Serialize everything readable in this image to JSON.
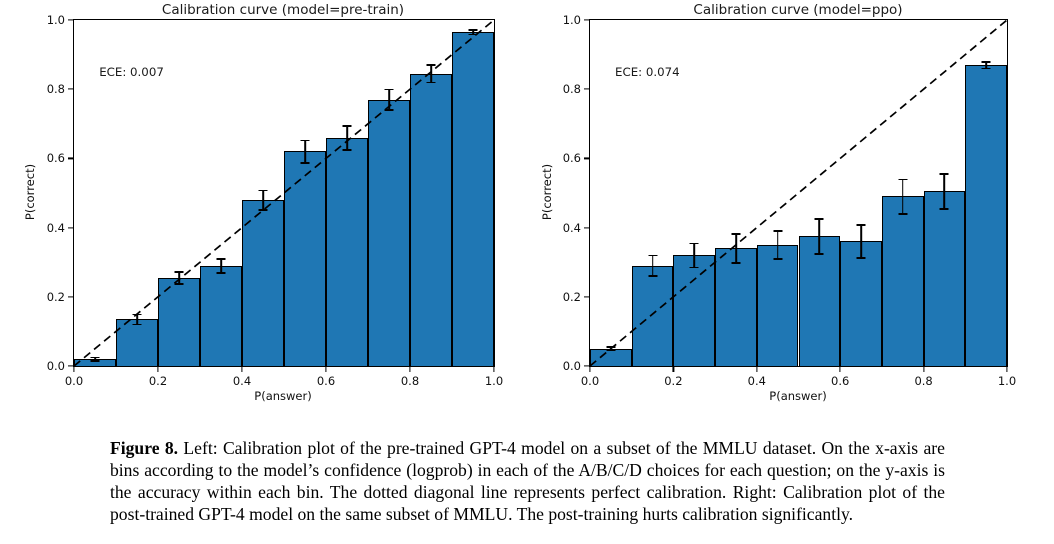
{
  "page": {
    "background": "#ffffff"
  },
  "colors": {
    "bar_fill": "#1f77b4",
    "bar_edge": "#000000",
    "error_bar": "#000000",
    "diagonal": "#000000",
    "axis": "#000000",
    "text": "#111111"
  },
  "figure": {
    "caption_label": "Figure 8.",
    "caption_text": " Left: Calibration plot of the pre-trained GPT-4 model on a subset of the MMLU dataset. On the x-axis are bins according to the model’s confidence (logprob) in each of the A/B/C/D choices for each question; on the y-axis is the accuracy within each bin. The dotted diagonal line represents perfect calibration. Right: Calibration plot of the post-trained GPT-4 model on the same subset of MMLU. The post-training hurts calibration significantly."
  },
  "chart_data": [
    {
      "type": "bar",
      "title": "Calibration curve (model=pre-train)",
      "annotation": "ECE: 0.007",
      "xlabel": "P(answer)",
      "ylabel": "P(correct)",
      "xlim": [
        0.0,
        1.0
      ],
      "ylim": [
        0.0,
        1.0
      ],
      "xticks": [
        0.0,
        0.2,
        0.4,
        0.6,
        0.8,
        1.0
      ],
      "yticks": [
        0.0,
        0.2,
        0.4,
        0.6,
        0.8,
        1.0
      ],
      "grid": false,
      "legend": "none",
      "diagonal": true,
      "bin_width": 0.1,
      "bin_centers": [
        0.05,
        0.15,
        0.25,
        0.35,
        0.45,
        0.55,
        0.65,
        0.75,
        0.85,
        0.95
      ],
      "values": [
        0.02,
        0.135,
        0.255,
        0.29,
        0.48,
        0.62,
        0.66,
        0.77,
        0.845,
        0.965
      ],
      "errors": [
        0.005,
        0.015,
        0.018,
        0.02,
        0.028,
        0.032,
        0.035,
        0.03,
        0.025,
        0.006
      ]
    },
    {
      "type": "bar",
      "title": "Calibration curve (model=ppo)",
      "annotation": "ECE: 0.074",
      "xlabel": "P(answer)",
      "ylabel": "P(correct)",
      "xlim": [
        0.0,
        1.0
      ],
      "ylim": [
        0.0,
        1.0
      ],
      "xticks": [
        0.0,
        0.2,
        0.4,
        0.6,
        0.8,
        1.0
      ],
      "yticks": [
        0.0,
        0.2,
        0.4,
        0.6,
        0.8,
        1.0
      ],
      "grid": false,
      "legend": "none",
      "diagonal": true,
      "bin_width": 0.1,
      "bin_centers": [
        0.05,
        0.15,
        0.25,
        0.35,
        0.45,
        0.55,
        0.65,
        0.75,
        0.85,
        0.95
      ],
      "values": [
        0.05,
        0.29,
        0.32,
        0.34,
        0.35,
        0.375,
        0.36,
        0.49,
        0.505,
        0.87
      ],
      "errors": [
        0.005,
        0.03,
        0.035,
        0.042,
        0.04,
        0.05,
        0.048,
        0.05,
        0.05,
        0.01
      ]
    }
  ]
}
